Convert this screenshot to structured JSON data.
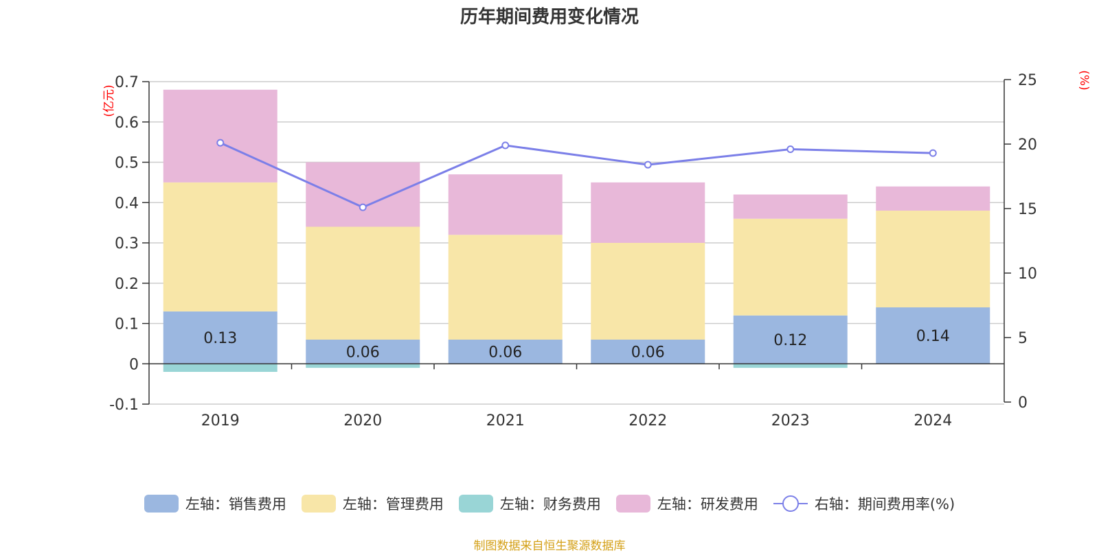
{
  "title": "历年期间费用变化情况",
  "source": "制图数据来自恒生聚源数据库",
  "chart_data": {
    "type": "bar",
    "stacked": true,
    "categories": [
      "2019",
      "2020",
      "2021",
      "2022",
      "2023",
      "2024"
    ],
    "left_axis": {
      "unit": "(亿元)",
      "ylim": [
        -0.1,
        0.7
      ],
      "ticks": [
        -0.1,
        0,
        0.1,
        0.2,
        0.3,
        0.4,
        0.5,
        0.6,
        0.7
      ]
    },
    "right_axis": {
      "unit": "(%)",
      "ylim": [
        0,
        25
      ],
      "ticks": [
        0,
        5,
        10,
        15,
        20,
        25
      ]
    },
    "series": [
      {
        "name": "左轴：销售费用",
        "axis": "left",
        "type": "bar",
        "color": "#9bb7e0",
        "values": [
          0.13,
          0.06,
          0.06,
          0.06,
          0.12,
          0.14
        ],
        "labels": [
          "0.13",
          "0.06",
          "0.06",
          "0.06",
          "0.12",
          "0.14"
        ]
      },
      {
        "name": "左轴：管理费用",
        "axis": "left",
        "type": "bar",
        "color": "#f8e6a8",
        "values": [
          0.32,
          0.28,
          0.26,
          0.24,
          0.24,
          0.24
        ]
      },
      {
        "name": "左轴：财务费用",
        "axis": "left",
        "type": "bar",
        "color": "#99d5d6",
        "values": [
          -0.02,
          -0.01,
          0.0,
          0.0,
          -0.01,
          0.0
        ]
      },
      {
        "name": "左轴：研发费用",
        "axis": "left",
        "type": "bar",
        "color": "#e8b8d9",
        "values": [
          0.23,
          0.16,
          0.15,
          0.15,
          0.06,
          0.06
        ]
      },
      {
        "name": "右轴：期间费用率(%)",
        "axis": "right",
        "type": "line",
        "color": "#7b7fe8",
        "values": [
          20.1,
          15.1,
          19.9,
          18.4,
          19.6,
          19.3
        ]
      }
    ]
  }
}
